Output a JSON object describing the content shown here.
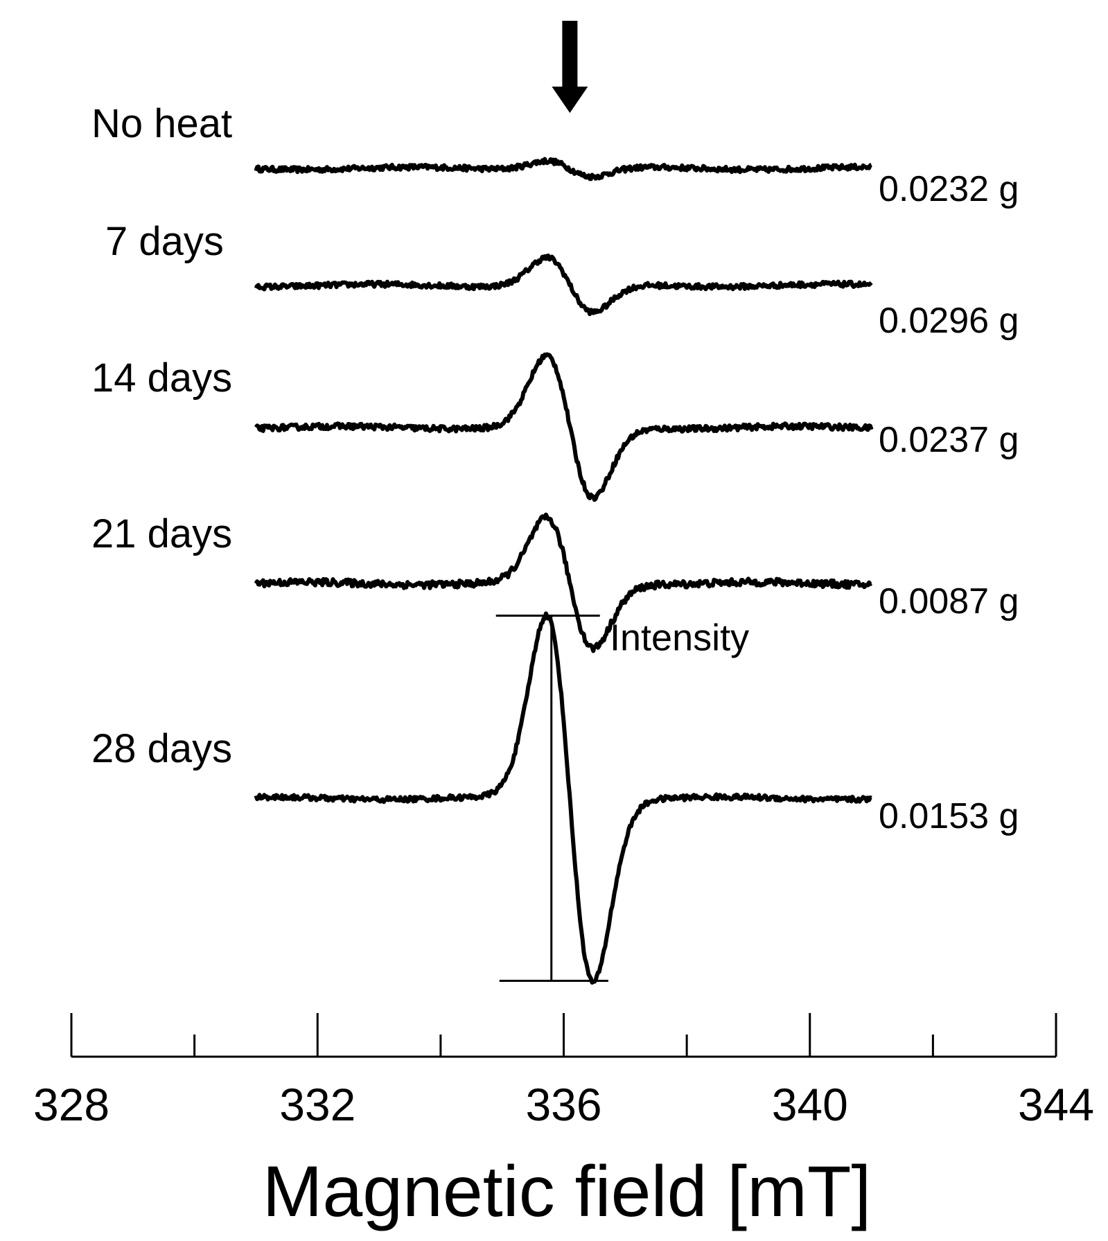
{
  "chart_data": {
    "type": "line",
    "x_unit": "mT",
    "xlabel": "Magnetic field [mT]",
    "xlim": [
      328,
      344
    ],
    "x_ticks": [
      "328",
      "332",
      "336",
      "340",
      "344"
    ],
    "x_minor_ticks": [
      330,
      334,
      338,
      342
    ],
    "x_range_measured": [
      331,
      341
    ],
    "signal_center": 336.1,
    "arrow_at": 336.1,
    "annotation": {
      "text": "Intensity",
      "peak_x": 335.8,
      "trough_x": 336.5
    },
    "series": [
      {
        "name": "No heat",
        "mass": "0.0232 g",
        "amplitude": 0.04,
        "noise": 0.012
      },
      {
        "name": "7 days",
        "mass": "0.0296 g",
        "amplitude": 0.13,
        "noise": 0.012
      },
      {
        "name": "14 days",
        "mass": "0.0237 g",
        "amplitude": 0.33,
        "noise": 0.013
      },
      {
        "name": "21 days",
        "mass": "0.0087 g",
        "amplitude": 0.3,
        "noise": 0.016
      },
      {
        "name": "28 days",
        "mass": "0.0153 g",
        "amplitude": 0.85,
        "noise": 0.012
      }
    ],
    "grid": false,
    "legend": "none"
  },
  "colors": {
    "line": "#000000",
    "background": "#ffffff"
  }
}
